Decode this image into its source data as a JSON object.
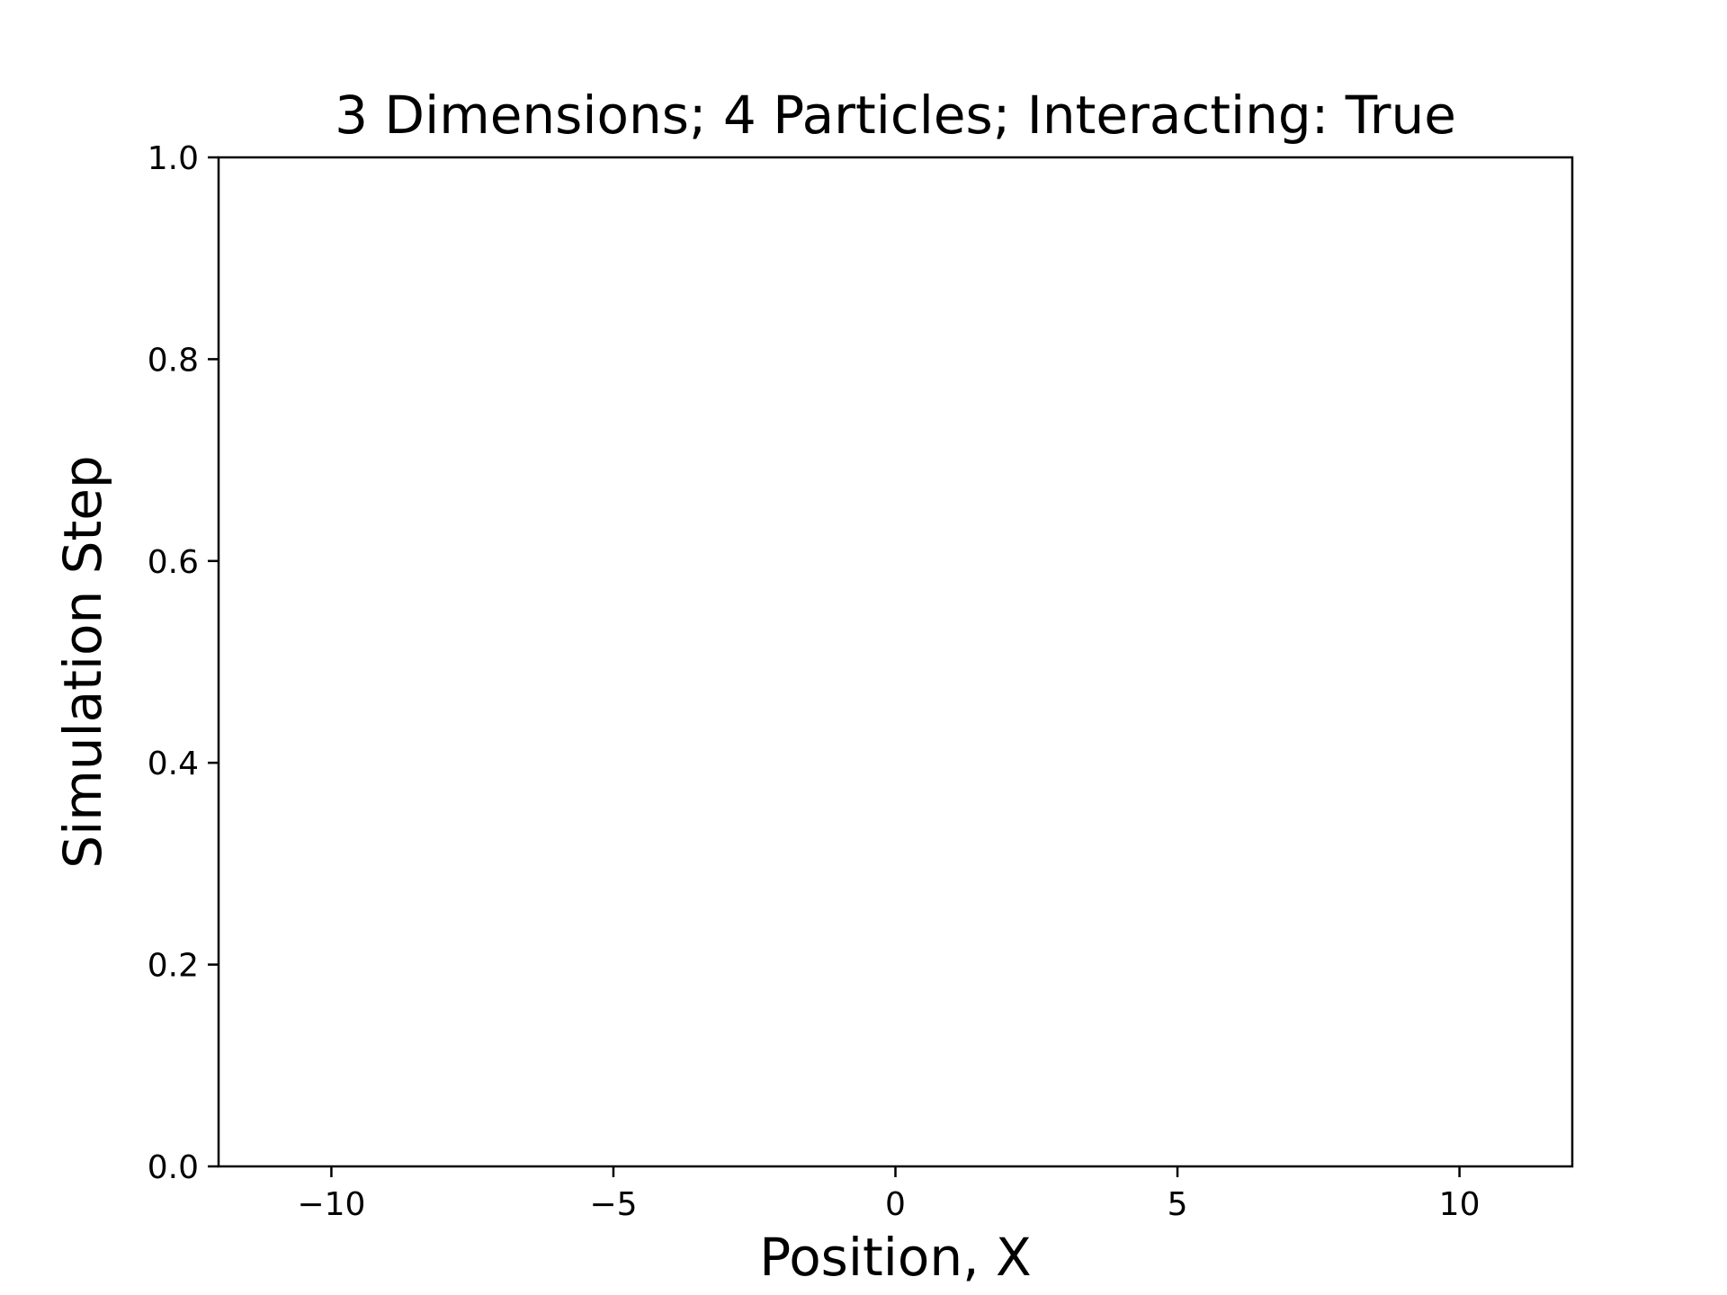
{
  "chart_data": {
    "type": "line",
    "title": "3 Dimensions; 4 Particles; Interacting: True",
    "xlabel": "Position, X",
    "ylabel": "Simulation Step",
    "xlim": [
      -12,
      12
    ],
    "ylim": [
      0,
      1
    ],
    "x_ticks": [
      -10,
      -5,
      0,
      5,
      10
    ],
    "x_tick_labels": [
      "−10",
      "−5",
      "0",
      "5",
      "10"
    ],
    "y_ticks": [
      0.0,
      0.2,
      0.4,
      0.6,
      0.8,
      1.0
    ],
    "y_tick_labels": [
      "0.0",
      "0.2",
      "0.4",
      "0.6",
      "0.8",
      "1.0"
    ],
    "series": [],
    "grid": false,
    "legend": "none",
    "colors": {
      "axes": "#000000",
      "background": "#ffffff"
    }
  }
}
